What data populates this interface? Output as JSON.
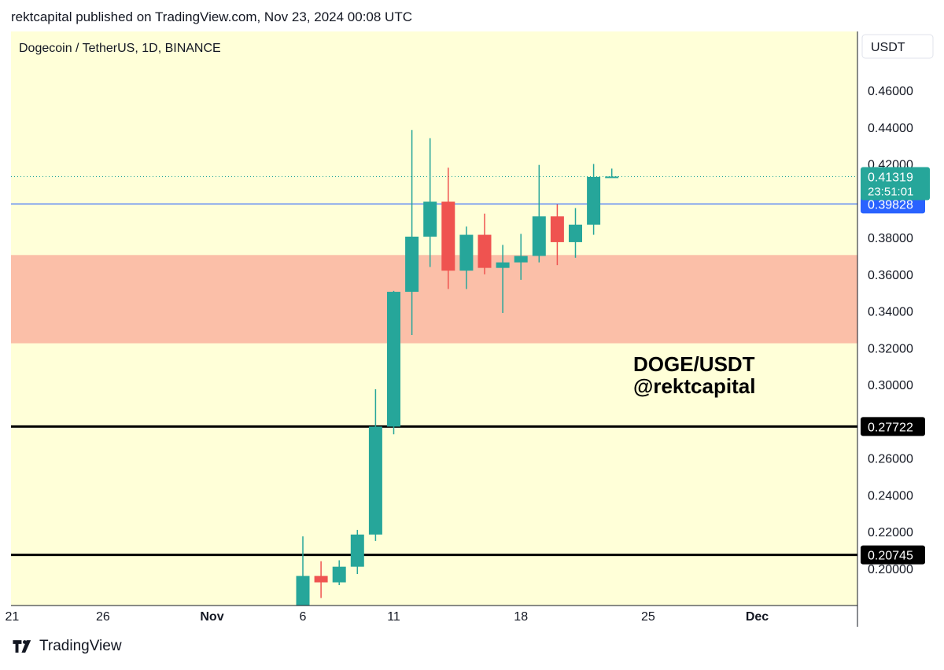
{
  "header": {
    "published": "rektcapital published on TradingView.com, Nov 23, 2024 00:08 UTC"
  },
  "footer": {
    "brand": "TradingView"
  },
  "colors": {
    "background": "#ffffd8",
    "zone": "#fbbfa8",
    "up": "#26a69a",
    "down": "#ef5350",
    "blue_line": "#2962ff",
    "price_badge": "#26a69a",
    "black_line": "#000000"
  },
  "chart_data": {
    "type": "candlestick",
    "symbol_label": "Dogecoin / TetherUS, 1D, BINANCE",
    "currency_label": "USDT",
    "ylim": [
      0.185,
      0.485
    ],
    "y_ticks": [
      "0.20000",
      "0.22000",
      "0.24000",
      "0.26000",
      "0.30000",
      "0.32000",
      "0.34000",
      "0.36000",
      "0.38000",
      "0.40000",
      "0.42000",
      "0.44000",
      "0.46000"
    ],
    "x_ticks": [
      "21",
      "26",
      "Nov",
      "6",
      "11",
      "18",
      "25",
      "Dec"
    ],
    "candles": [
      {
        "date": "2024-11-06",
        "open": 0.17,
        "high": 0.2175,
        "low": 0.17,
        "close": 0.196
      },
      {
        "date": "2024-11-07",
        "open": 0.196,
        "high": 0.204,
        "low": 0.184,
        "close": 0.1925
      },
      {
        "date": "2024-11-08",
        "open": 0.1925,
        "high": 0.2045,
        "low": 0.191,
        "close": 0.201
      },
      {
        "date": "2024-11-09",
        "open": 0.201,
        "high": 0.221,
        "low": 0.197,
        "close": 0.2185
      },
      {
        "date": "2024-11-10",
        "open": 0.2185,
        "high": 0.2975,
        "low": 0.215,
        "close": 0.2772
      },
      {
        "date": "2024-11-11",
        "open": 0.2772,
        "high": 0.351,
        "low": 0.273,
        "close": 0.3505
      },
      {
        "date": "2024-11-12",
        "open": 0.3505,
        "high": 0.4385,
        "low": 0.327,
        "close": 0.3805
      },
      {
        "date": "2024-11-13",
        "open": 0.3805,
        "high": 0.434,
        "low": 0.364,
        "close": 0.3995
      },
      {
        "date": "2024-11-14",
        "open": 0.3995,
        "high": 0.418,
        "low": 0.352,
        "close": 0.362
      },
      {
        "date": "2024-11-15",
        "open": 0.362,
        "high": 0.386,
        "low": 0.352,
        "close": 0.3815
      },
      {
        "date": "2024-11-16",
        "open": 0.3815,
        "high": 0.393,
        "low": 0.36,
        "close": 0.3635
      },
      {
        "date": "2024-11-17",
        "open": 0.3635,
        "high": 0.376,
        "low": 0.339,
        "close": 0.3665
      },
      {
        "date": "2024-11-18",
        "open": 0.3665,
        "high": 0.382,
        "low": 0.357,
        "close": 0.37
      },
      {
        "date": "2024-11-19",
        "open": 0.37,
        "high": 0.4195,
        "low": 0.3665,
        "close": 0.3915
      },
      {
        "date": "2024-11-20",
        "open": 0.3915,
        "high": 0.398,
        "low": 0.365,
        "close": 0.3775
      },
      {
        "date": "2024-11-21",
        "open": 0.3775,
        "high": 0.396,
        "low": 0.369,
        "close": 0.387
      },
      {
        "date": "2024-11-22",
        "open": 0.387,
        "high": 0.42,
        "low": 0.3815,
        "close": 0.413
      },
      {
        "date": "2024-11-23",
        "open": 0.413,
        "high": 0.4175,
        "low": 0.4125,
        "close": 0.4132
      }
    ],
    "support_zone": [
      0.3225,
      0.3705
    ],
    "horizontal_lines": [
      {
        "value": 0.39828,
        "label": "0.39828",
        "color": "blue"
      },
      {
        "value": 0.27722,
        "label": "0.27722",
        "color": "black"
      },
      {
        "value": 0.20745,
        "label": "0.20745",
        "color": "black"
      }
    ],
    "last_price": {
      "value": 0.41319,
      "label": "0.41319",
      "countdown": "23:51:01"
    },
    "annotation": [
      "DOGE/USDT",
      "@rektcapital"
    ]
  }
}
